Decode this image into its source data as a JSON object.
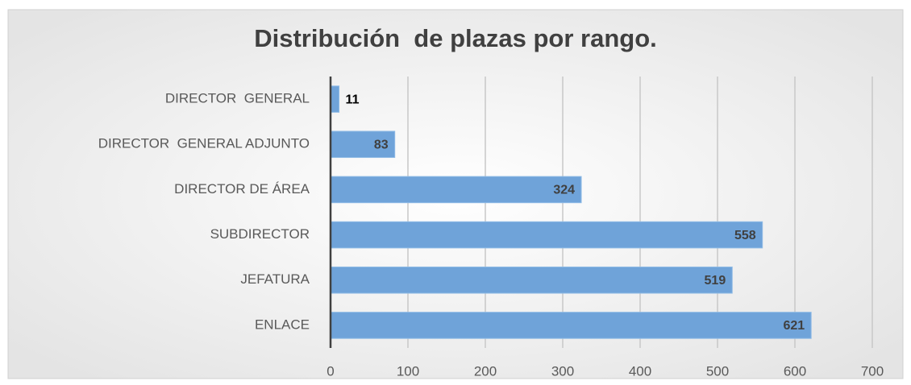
{
  "chart_data": {
    "type": "bar",
    "orientation": "horizontal",
    "title": "Distribución  de plazas por rango.",
    "categories": [
      "DIRECTOR  GENERAL",
      "DIRECTOR  GENERAL ADJUNTO",
      "DIRECTOR DE ÁREA",
      "SUBDIRECTOR",
      "JEFATURA",
      "ENLACE"
    ],
    "values": [
      11,
      83,
      324,
      558,
      519,
      621
    ],
    "color": "#6fa3d9",
    "xlim": [
      0,
      700
    ],
    "xticks": [
      0,
      100,
      200,
      300,
      400,
      500,
      600,
      700
    ],
    "grid": true
  }
}
